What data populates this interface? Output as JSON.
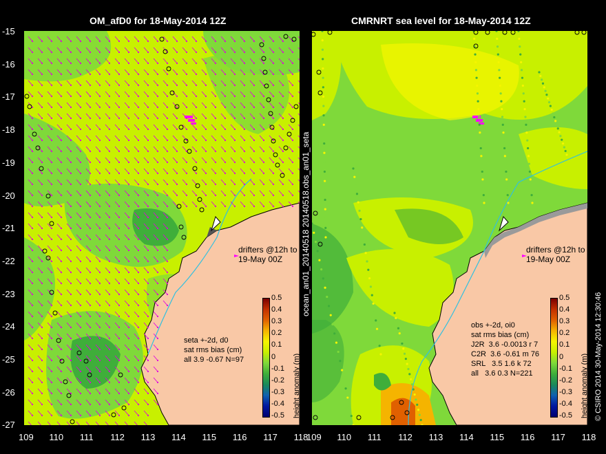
{
  "left_title": "OM_afD0 for 18-May-2014 12Z",
  "right_title": "CMRNRT sea level  for 18-May-2014 12Z",
  "y_ticks": [
    "-15",
    "-16",
    "-17",
    "-18",
    "-19",
    "-20",
    "-21",
    "-22",
    "-23",
    "-24",
    "-25",
    "-26",
    "-27"
  ],
  "x_ticks_left": [
    "109",
    "110",
    "111",
    "112",
    "113",
    "114",
    "115",
    "116",
    "117",
    "118"
  ],
  "x_ticks_right": [
    "109",
    "110",
    "111",
    "112",
    "113",
    "114",
    "115",
    "116",
    "117",
    "118"
  ],
  "vertical_label": "ocean_an01_20140518 20140518.obs_an01_seta",
  "credit_label": "© CSIRO 2014   30-May-2014 12:30:46",
  "drifters_note_line1": "drifters @12h to",
  "drifters_note_line2": "19-May 00Z",
  "colorbar": {
    "ticks": [
      "0.5",
      "0.4",
      "0.3",
      "0.2",
      "0.1",
      "0",
      "-0.1",
      "-0.2",
      "-0.3",
      "-0.4",
      "-0.5"
    ],
    "label": "height anomaly (m)"
  },
  "left_stats": "seta +-2d, d0\nsat rms bias (cm)\nall 3.9 -0.67 N=97",
  "right_stats": "obs +-2d, oi0\nsat rms bias (cm)\nJ2R  3.6 -0.0013 r 7\nC2R  3.6 -0.61 m 76\nSRL   3.5 1.6 k 72\nall   3.6 0.3 N=221",
  "colors": {
    "land": "#f9c8a6",
    "sea_base": "#c8f000",
    "green": "#7fd93a",
    "dark_green": "#3fae3a",
    "yellow": "#f5f500",
    "orange": "#f5b400",
    "red": "#e06000",
    "vector": "#e000e0"
  }
}
